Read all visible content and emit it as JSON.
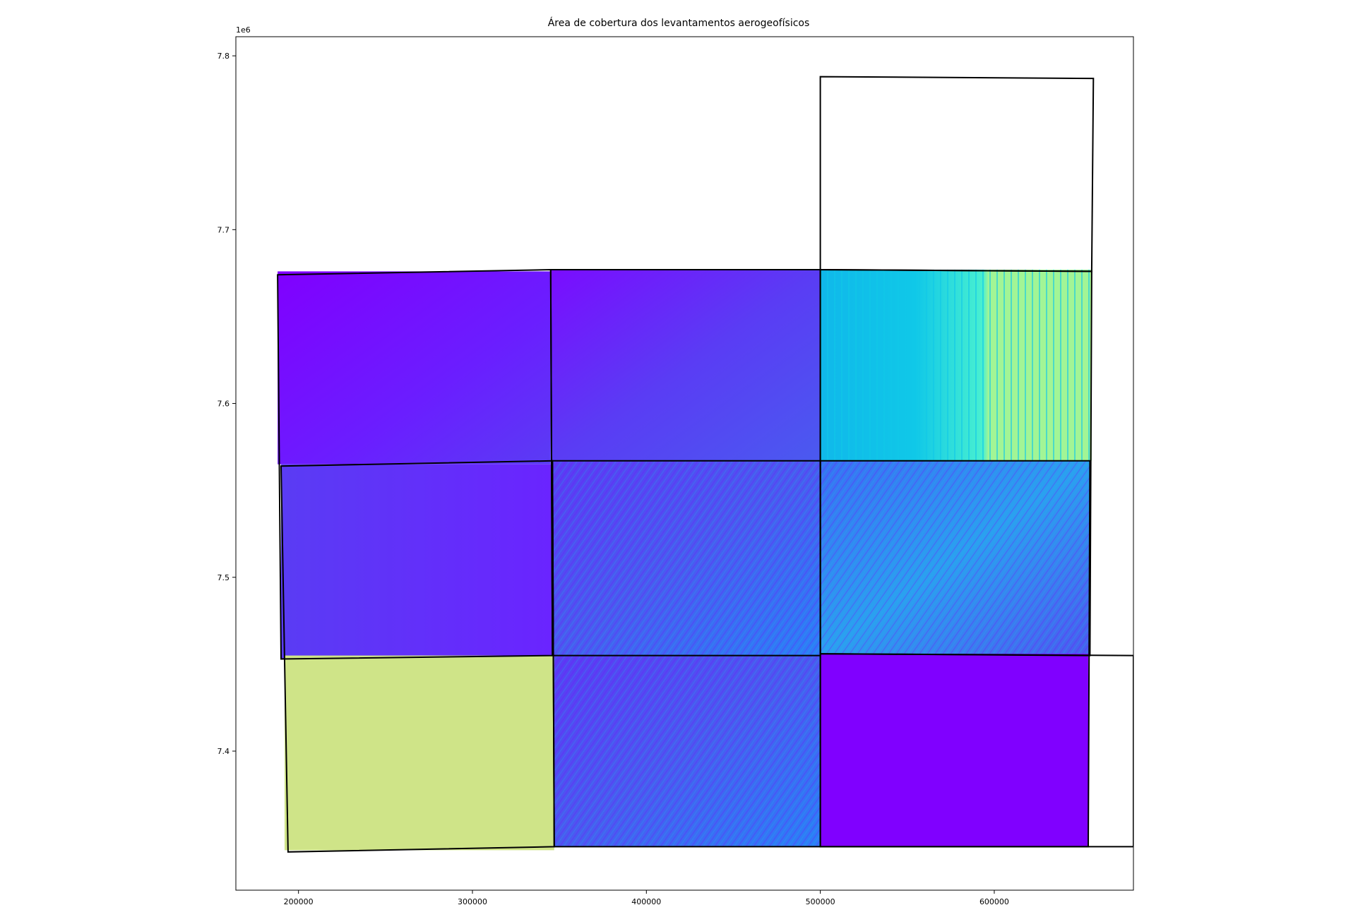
{
  "chart_data": {
    "type": "heatmap",
    "title": "Área de cobertura dos levantamentos aerogeofísicos",
    "xlabel": "",
    "ylabel": "",
    "y_offset_label": "1e6",
    "xlim": [
      164000,
      680000
    ],
    "ylim": [
      7320000,
      7811000
    ],
    "x_ticks": [
      200000,
      300000,
      400000,
      500000,
      600000
    ],
    "x_tick_labels": [
      "200000",
      "300000",
      "400000",
      "500000",
      "600000"
    ],
    "y_ticks": [
      7400000,
      7500000,
      7600000,
      7700000,
      7800000
    ],
    "y_tick_labels": [
      "7.4",
      "7.5",
      "7.6",
      "7.7",
      "7.8"
    ],
    "colormap": "rainbow",
    "colors": {
      "purple": "#8000ff",
      "blue_violet": "#5a3cf4",
      "blue": "#2c7ef7",
      "cyan": "#10c8e8",
      "aqua": "#49f0d0",
      "green": "#a2f595",
      "yellow_green": "#cfe488"
    },
    "raster_tiles": [
      {
        "name": "NW",
        "x": [
          188000,
          345000
        ],
        "y": [
          7565000,
          7676000
        ],
        "fill": "gradient_purple"
      },
      {
        "name": "N-center",
        "x": [
          345000,
          500000
        ],
        "y": [
          7567000,
          7677000
        ],
        "fill": "gradient_purple_blue"
      },
      {
        "name": "NE",
        "x": [
          500000,
          656000
        ],
        "y": [
          7567000,
          7677000
        ],
        "fill": "gradient_cyan_green"
      },
      {
        "name": "W",
        "x": [
          190000,
          346000
        ],
        "y": [
          7453000,
          7565000
        ],
        "fill": "gradient_blue_violet"
      },
      {
        "name": "center",
        "x": [
          346000,
          500000
        ],
        "y": [
          7455000,
          7567000
        ],
        "fill": "texture_blue"
      },
      {
        "name": "E",
        "x": [
          500000,
          655000
        ],
        "y": [
          7455000,
          7567000
        ],
        "fill": "texture_cyan"
      },
      {
        "name": "SW",
        "x": [
          192000,
          347000
        ],
        "y": [
          7343000,
          7455000
        ],
        "fill": "solid_yellow_green"
      },
      {
        "name": "S-center",
        "x": [
          347000,
          500000
        ],
        "y": [
          7345000,
          7455000
        ],
        "fill": "texture_blue"
      },
      {
        "name": "SE",
        "x": [
          500000,
          654000
        ],
        "y": [
          7345000,
          7456000
        ],
        "fill": "solid_purple"
      }
    ],
    "survey_outlines": [
      [
        [
          188000,
          7674000
        ],
        [
          345000,
          7677000
        ],
        [
          346000,
          7455000
        ],
        [
          190000,
          7453000
        ]
      ],
      [
        [
          190000,
          7564000
        ],
        [
          346000,
          7567000
        ],
        [
          347000,
          7345000
        ],
        [
          194000,
          7342000
        ]
      ],
      [
        [
          345000,
          7677000
        ],
        [
          500000,
          7677000
        ],
        [
          500000,
          7455000
        ],
        [
          346000,
          7455000
        ]
      ],
      [
        [
          500000,
          7677000
        ],
        [
          656000,
          7676000
        ],
        [
          655000,
          7455000
        ],
        [
          500000,
          7456000
        ]
      ],
      [
        [
          346000,
          7567000
        ],
        [
          500000,
          7567000
        ],
        [
          500000,
          7345000
        ],
        [
          347000,
          7345000
        ]
      ],
      [
        [
          500000,
          7567000
        ],
        [
          655000,
          7567000
        ],
        [
          654000,
          7345000
        ],
        [
          500000,
          7345000
        ]
      ],
      [
        [
          500000,
          7788000
        ],
        [
          657000,
          7787000
        ],
        [
          656000,
          7676000
        ],
        [
          500000,
          7677000
        ]
      ],
      [
        [
          500000,
          7456000
        ],
        [
          680000,
          7455000
        ],
        [
          680000,
          7345000
        ],
        [
          500000,
          7345000
        ]
      ]
    ]
  }
}
